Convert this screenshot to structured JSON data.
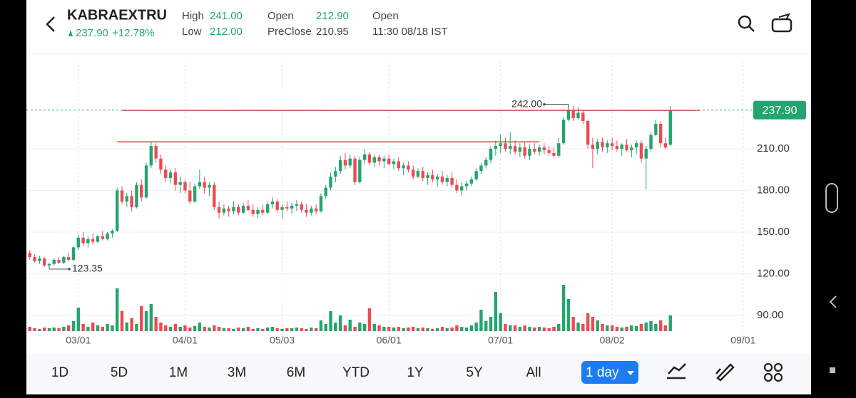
{
  "header": {
    "symbol": "KABRAEXTRU",
    "price": "237.90",
    "change": "+12.78%",
    "high_label": "High",
    "high": "241.00",
    "low_label": "Low",
    "low": "212.00",
    "open_label": "Open",
    "open": "212.90",
    "preclose_label": "PreClose",
    "preclose": "210.95",
    "status": "Open",
    "time": "11:30 08/18 IST"
  },
  "chart_data": {
    "type": "candlestick",
    "open": [
      135,
      132,
      129,
      131,
      126,
      127,
      130,
      128,
      132,
      130,
      139,
      146,
      142,
      145,
      143,
      147,
      145,
      149,
      151,
      180,
      172,
      176,
      168,
      184,
      175,
      198,
      212,
      203,
      195,
      189,
      193,
      184,
      186,
      180,
      172,
      183,
      186,
      182,
      184,
      168,
      164,
      167,
      165,
      168,
      164,
      169,
      166,
      163,
      166,
      164,
      170,
      172,
      166,
      168,
      167,
      169,
      170,
      166,
      164,
      167,
      165,
      176,
      182,
      190,
      194,
      202,
      198,
      203,
      186,
      202,
      206,
      200,
      204,
      201,
      203,
      199,
      201,
      196,
      198,
      195,
      190,
      194,
      189,
      191,
      188,
      190,
      186,
      189,
      184,
      180,
      183,
      185,
      188,
      194,
      198,
      202,
      210,
      212,
      214,
      210,
      212,
      208,
      211,
      205,
      210,
      208,
      211,
      209,
      207,
      205,
      214,
      231,
      238,
      232,
      236,
      230,
      213,
      210,
      215,
      211,
      214,
      212,
      210,
      213,
      209,
      211,
      214,
      203,
      210,
      220,
      228,
      214,
      212.9
    ],
    "high": [
      137,
      134,
      133,
      132,
      128,
      131,
      132,
      133,
      135,
      140,
      148,
      150,
      147,
      149,
      148,
      151,
      150,
      152,
      182,
      183,
      178,
      180,
      186,
      188,
      200,
      215,
      214,
      206,
      198,
      195,
      196,
      190,
      188,
      186,
      185,
      195,
      190,
      186,
      186,
      172,
      170,
      169,
      172,
      170,
      171,
      173,
      170,
      168,
      170,
      172,
      175,
      174,
      170,
      172,
      171,
      173,
      172,
      170,
      169,
      170,
      178,
      184,
      193,
      197,
      205,
      207,
      206,
      205,
      204,
      210,
      208,
      206,
      206,
      205,
      206,
      203,
      204,
      200,
      201,
      198,
      196,
      197,
      193,
      195,
      192,
      194,
      191,
      193,
      188,
      186,
      187,
      190,
      196,
      200,
      204,
      212,
      216,
      220,
      218,
      222,
      216,
      214,
      215,
      213,
      214,
      213,
      214,
      212,
      211,
      218,
      233,
      242,
      241,
      240,
      238,
      231,
      218,
      217,
      218,
      216,
      218,
      216,
      214,
      217,
      213,
      216,
      216,
      212,
      222,
      231,
      230,
      218,
      241
    ],
    "low": [
      130,
      128,
      127,
      125,
      123.35,
      126,
      127,
      127,
      129,
      129,
      137,
      140,
      139,
      141,
      142,
      144,
      144,
      146,
      150,
      170,
      168,
      165,
      167,
      172,
      174,
      196,
      200,
      192,
      186,
      185,
      180,
      178,
      178,
      170,
      171,
      181,
      178,
      176,
      166,
      160,
      162,
      161,
      163,
      162,
      163,
      165,
      161,
      160,
      162,
      163,
      167,
      164,
      160,
      165,
      163,
      165,
      164,
      161,
      162,
      163,
      164,
      174,
      180,
      186,
      192,
      195,
      196,
      184,
      185,
      199,
      198,
      197,
      198,
      196,
      198,
      195,
      194,
      191,
      193,
      188,
      189,
      187,
      184,
      186,
      183,
      184,
      183,
      182,
      178,
      176,
      180,
      183,
      187,
      192,
      196,
      200,
      205,
      207,
      208,
      206,
      206,
      204,
      203,
      202,
      206,
      205,
      206,
      205,
      204,
      204,
      213,
      230,
      230,
      231,
      228,
      210,
      196,
      206,
      208,
      207,
      209,
      208,
      205,
      208,
      204,
      206,
      200,
      181,
      208,
      219,
      211,
      210,
      212
    ],
    "close": [
      132,
      129,
      131,
      126,
      127,
      130,
      128,
      132,
      130,
      139,
      146,
      142,
      145,
      143,
      147,
      145,
      149,
      151,
      180,
      172,
      176,
      168,
      184,
      175,
      198,
      212,
      203,
      195,
      189,
      193,
      184,
      186,
      180,
      172,
      183,
      186,
      182,
      184,
      168,
      164,
      167,
      165,
      168,
      164,
      169,
      166,
      163,
      166,
      164,
      170,
      172,
      166,
      168,
      167,
      169,
      170,
      166,
      164,
      167,
      165,
      176,
      182,
      190,
      194,
      202,
      198,
      203,
      186,
      202,
      206,
      200,
      204,
      201,
      203,
      199,
      201,
      196,
      198,
      195,
      190,
      194,
      189,
      191,
      188,
      190,
      186,
      189,
      184,
      180,
      183,
      185,
      188,
      194,
      198,
      202,
      210,
      212,
      214,
      210,
      212,
      208,
      211,
      205,
      210,
      208,
      211,
      209,
      207,
      205,
      214,
      231,
      238,
      232,
      236,
      230,
      213,
      210,
      215,
      211,
      214,
      212,
      210,
      213,
      209,
      211,
      214,
      203,
      210,
      220,
      228,
      214,
      210.95,
      237.9
    ],
    "volume": [
      6,
      4,
      3,
      5,
      4,
      5,
      4,
      6,
      8,
      14,
      33,
      10,
      6,
      12,
      8,
      6,
      10,
      8,
      60,
      28,
      12,
      18,
      10,
      35,
      28,
      38,
      20,
      12,
      8,
      6,
      10,
      6,
      8,
      5,
      7,
      12,
      6,
      5,
      8,
      6,
      4,
      4,
      3,
      5,
      4,
      6,
      3,
      4,
      3,
      5,
      6,
      4,
      3,
      4,
      4,
      5,
      4,
      3,
      5,
      4,
      15,
      10,
      28,
      12,
      22,
      8,
      16,
      6,
      12,
      10,
      32,
      10,
      8,
      6,
      6,
      5,
      6,
      4,
      5,
      6,
      4,
      5,
      4,
      3,
      4,
      6,
      4,
      5,
      8,
      6,
      5,
      8,
      12,
      30,
      14,
      20,
      55,
      25,
      10,
      8,
      8,
      6,
      8,
      6,
      5,
      6,
      5,
      4,
      6,
      10,
      65,
      45,
      20,
      12,
      10,
      25,
      20,
      15,
      10,
      8,
      8,
      6,
      5,
      6,
      8,
      7,
      10,
      12,
      14,
      10,
      15,
      8,
      22
    ],
    "up_color": "#25a46f",
    "down_color": "#ec4b55",
    "xlim": [
      -0.7,
      148.5
    ],
    "xticks": [
      {
        "value": 10,
        "label": "03/01"
      },
      {
        "value": 32,
        "label": "04/01"
      },
      {
        "value": 52,
        "label": "05/03"
      },
      {
        "value": 74,
        "label": "06/01"
      },
      {
        "value": 97,
        "label": "07/01"
      },
      {
        "value": 120,
        "label": "08/02"
      },
      {
        "value": 147,
        "label": "09/01"
      }
    ],
    "ylim": [
      78.7,
      273.6
    ],
    "yticks": [
      {
        "value": 90,
        "label": "90.00"
      },
      {
        "value": 120,
        "label": "120.00"
      },
      {
        "value": 150,
        "label": "150.00"
      },
      {
        "value": 180,
        "label": "180.00"
      },
      {
        "value": 210,
        "label": "210.00"
      }
    ],
    "volume_ylim": [
      0,
      70
    ],
    "grid": true,
    "last_label": {
      "value": 237.9,
      "label": "237.90"
    },
    "high_label": {
      "value": 242,
      "label": "242.00"
    },
    "low_label": {
      "value": 123.35,
      "label": "123.35"
    },
    "trend_lines": [
      {
        "value": 237.7,
        "start": 19,
        "end": 138
      },
      {
        "value": 215,
        "start": 18,
        "end": 105
      }
    ],
    "trend_color": "#e53935"
  },
  "toolbar": {
    "ranges": [
      "1D",
      "5D",
      "1M",
      "3M",
      "6M",
      "YTD",
      "1Y",
      "5Y",
      "All"
    ],
    "interval": "1 day"
  }
}
